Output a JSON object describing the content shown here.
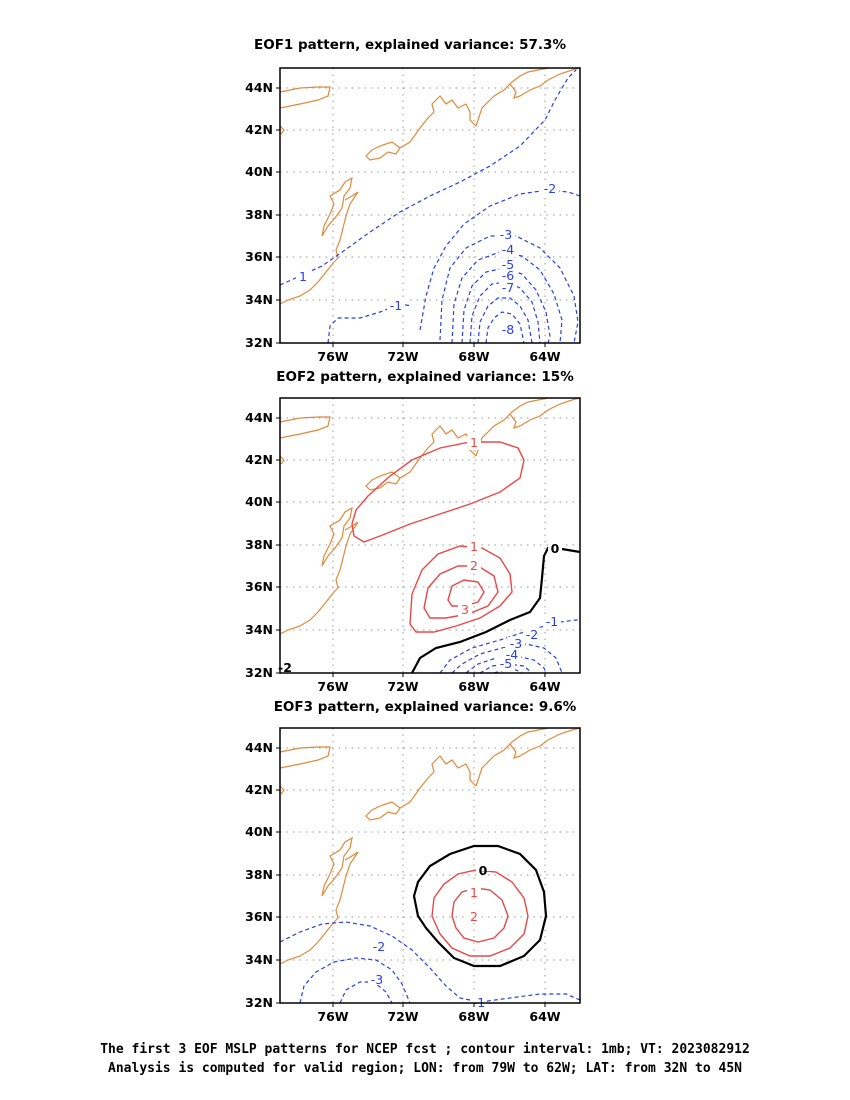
{
  "colors": {
    "coast": "#e08a3a",
    "negative": "#2a3fe6",
    "positive": "#e84848",
    "zero": "#000000"
  },
  "panels": [
    {
      "title": "EOF1 pattern, explained variance: 57.3%",
      "contour_labels": [
        "1",
        "-2",
        "-3",
        "-4",
        "-5",
        "-6",
        "-7",
        "-8",
        "-1"
      ]
    },
    {
      "title": "EOF2 pattern, explained variance: 15%",
      "contour_labels": [
        "1",
        "1",
        "2",
        "3",
        "0",
        "-1",
        "-2",
        "-3",
        "-4",
        "-5",
        "-2"
      ]
    },
    {
      "title": "EOF3 pattern, explained variance: 9.6%",
      "contour_labels": [
        "0",
        "1",
        "2",
        "-2",
        "-3",
        "-1"
      ]
    }
  ],
  "axes": {
    "lon_ticks": [
      "76W",
      "72W",
      "68W",
      "64W"
    ],
    "lat_ticks": [
      "44N",
      "42N",
      "40N",
      "38N",
      "36N",
      "34N",
      "32N"
    ]
  },
  "caption": {
    "line1": "The first 3 EOF MSLP patterns for NCEP fcst ; contour interval: 1mb; VT: 2023082912",
    "line2": "Analysis is computed for valid region; LON: from 79W to 62W; LAT: from 32N to 45N"
  }
}
